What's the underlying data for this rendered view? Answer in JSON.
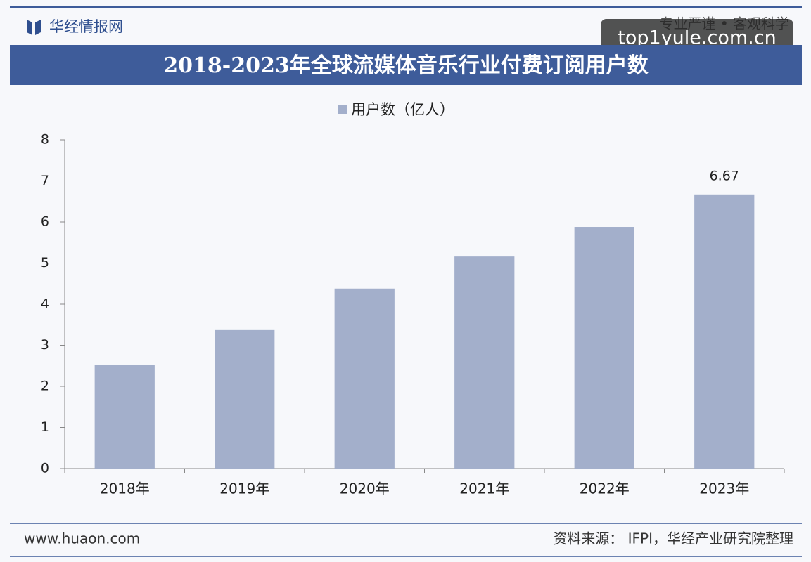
{
  "header": {
    "brand": "华经情报网",
    "slogan": "专业严谨 • 客观科学",
    "watermark": "top1yule.com.cn"
  },
  "chart_data": {
    "type": "bar",
    "title": "2018-2023年全球流媒体音乐行业付费订阅用户数",
    "categories": [
      "2018年",
      "2019年",
      "2020年",
      "2021年",
      "2022年",
      "2023年"
    ],
    "series": [
      {
        "name": "用户数（亿人）",
        "color": "#a3afcb",
        "values": [
          2.53,
          3.37,
          4.38,
          5.16,
          5.88,
          6.67
        ]
      }
    ],
    "value_labels": [
      null,
      null,
      null,
      null,
      null,
      "6.67"
    ],
    "ylim": [
      0,
      8
    ],
    "yticks": [
      0,
      1,
      2,
      3,
      4,
      5,
      6,
      7,
      8
    ],
    "legend": "top"
  },
  "footer": {
    "website": "www.huaon.com",
    "source": "资料来源： IFPI，华经产业研究院整理"
  }
}
